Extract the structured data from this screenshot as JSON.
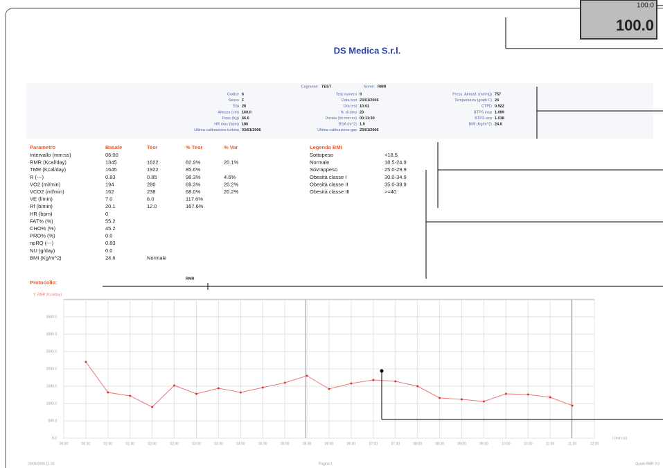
{
  "header": {
    "company": "DS Medica S.r.l.",
    "badge_small": "100.0",
    "badge_large": "100.0"
  },
  "patient": {
    "surname_label": "Cognome:",
    "surname": "TEST",
    "name_label": "Nome:",
    "name": "RMR",
    "columns": [
      [
        [
          "Codice",
          "6"
        ],
        [
          "Sesso",
          "F"
        ],
        [
          "Età",
          "28"
        ],
        [
          "Altezza (cm)",
          "160.0"
        ],
        [
          "Peso (Kg)",
          "66.6"
        ],
        [
          "HR max (bpm)",
          "186"
        ],
        [
          "Ultima calibrazione turbina",
          "03/01/2006"
        ]
      ],
      [
        [
          "Test numero",
          "9"
        ],
        [
          "Data test",
          "23/01/2006"
        ],
        [
          "Ora test",
          "10:01"
        ],
        [
          "N. di step",
          "23"
        ],
        [
          "Durata (hh:mm:ss)",
          "00:11:30"
        ],
        [
          "BSA (m^2)",
          "1.9"
        ],
        [
          "Ultima calibrazione gas",
          "23/01/2006"
        ]
      ],
      [
        [
          "Press. Atmosf. (mmHg)",
          "757"
        ],
        [
          "Temperatura (gradi C)",
          "24"
        ],
        [
          "CTPD",
          "0.922"
        ],
        [
          "BTPS insp",
          "1.099"
        ],
        [
          "BTPS exp",
          "1.018"
        ],
        [
          "BMI (Kg/m^2)",
          "24.6"
        ]
      ]
    ]
  },
  "table": {
    "header": [
      "Parametro",
      "Basale",
      "Teor",
      "% Teor",
      "% Var"
    ],
    "rows": [
      [
        "Intervallo (mm:ss)",
        "06:00",
        null,
        null,
        null
      ],
      [
        "RMR (Kcal/day)",
        "1345",
        "1622",
        "82.9%",
        "20.1%"
      ],
      [
        "TMR (Kcal/day)",
        "1645",
        "1922",
        "85.6%",
        null
      ],
      [
        "R (---)",
        "0.83",
        "0.85",
        "98.3%",
        "4.6%"
      ],
      [
        "VO2 (ml/min)",
        "194",
        "280",
        "69.3%",
        "20.2%"
      ],
      [
        "VCO2 (ml/min)",
        "162",
        "238",
        "68.0%",
        "20.2%"
      ],
      [
        "VE (l/min)",
        "7.0",
        "6.0",
        "117.6%",
        null
      ],
      [
        "Rf (b/min)",
        "20.1",
        "12.0",
        "167.6%",
        null
      ],
      [
        "HR (bpm)",
        "0",
        null,
        null,
        null
      ],
      [
        "FAT% (%)",
        "55.2",
        null,
        null,
        null
      ],
      [
        "CHO% (%)",
        "45.2",
        null,
        null,
        null
      ],
      [
        "PRO% (%)",
        "0.0",
        null,
        null,
        null
      ],
      [
        "npRQ (---)",
        "0.83",
        null,
        null,
        null
      ],
      [
        "NU (g/day)",
        "0.0",
        null,
        null,
        null
      ],
      [
        "BMI (Kg/m^2)",
        "24.6",
        "Normale",
        null,
        null
      ]
    ],
    "protocol_label": "Protocollo:",
    "protocol": "RMR"
  },
  "bmi_legend": {
    "title": "Legenda BMI",
    "rows": [
      [
        "Sottopeso",
        "<18.5"
      ],
      [
        "Normale",
        "18.5-24.9"
      ],
      [
        "Sovrappeso",
        "25.0-29.9"
      ],
      [
        "Obesità classe I",
        "30.0-34.9"
      ],
      [
        "Obesità classe II",
        "35.0-39.9"
      ],
      [
        "Obesità classe III",
        ">=40"
      ]
    ]
  },
  "chart_data": {
    "type": "line",
    "y_label": "Y: RMR (Kcal/day)",
    "x_label": "t (mm:ss)",
    "categories": [
      "00:00",
      "00:30",
      "01:00",
      "01:30",
      "02:00",
      "02:30",
      "03:00",
      "03:30",
      "04:00",
      "04:30",
      "05:00",
      "05:30",
      "06:00",
      "06:30",
      "07:00",
      "07:30",
      "08:00",
      "08:30",
      "09:00",
      "09:30",
      "10:00",
      "10:30",
      "11:00",
      "11:30",
      "12:00"
    ],
    "series": [
      {
        "name": "RMR",
        "color": "#e87878",
        "values": [
          null,
          2200,
          1320,
          1220,
          900,
          1520,
          1280,
          1440,
          1320,
          1460,
          1600,
          1800,
          1420,
          1580,
          1680,
          1640,
          1500,
          1160,
          1120,
          1060,
          1280,
          1260,
          1180,
          940,
          null
        ]
      }
    ],
    "ylim": [
      0,
      4000
    ],
    "yticks": [
      {
        "value": 0,
        "label": "0.0"
      },
      {
        "value": 500,
        "label": "500.0"
      },
      {
        "value": 1000,
        "label": "1000.0"
      },
      {
        "value": 1500,
        "label": "1500.0"
      },
      {
        "value": 2000,
        "label": "2000.0"
      },
      {
        "value": 2500,
        "label": "2500.0"
      },
      {
        "value": 3000,
        "label": "3000.0"
      },
      {
        "value": 3500,
        "label": "3500.0"
      }
    ],
    "grid": true
  },
  "footer": {
    "date": "20/06/2006 11:33",
    "page": "Pagina 1",
    "software": "Quark RMR 9.0"
  }
}
